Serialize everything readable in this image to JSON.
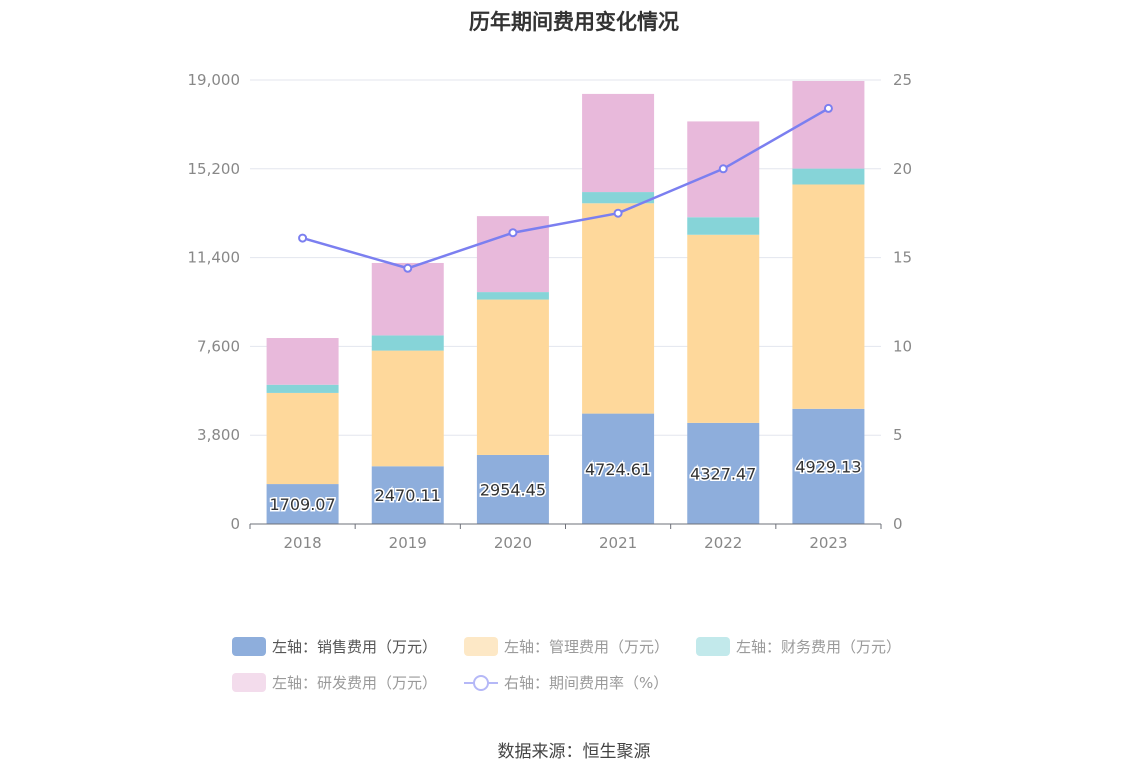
{
  "title": "历年期间费用变化情况",
  "source": "数据来源：恒生聚源",
  "chart_data": {
    "type": "bar",
    "stacked": true,
    "categories": [
      "2018",
      "2019",
      "2020",
      "2021",
      "2022",
      "2023"
    ],
    "series": [
      {
        "name": "左轴：销售费用（万元）",
        "axis": "left",
        "color": "#8eaedc",
        "values": [
          1709.07,
          2470.11,
          2954.45,
          4724.61,
          4327.47,
          4929.13
        ],
        "labels_shown": true
      },
      {
        "name": "左轴：管理费用（万元）",
        "axis": "left",
        "color": "#fed89b",
        "values": [
          3900,
          4950,
          6650,
          9000,
          8050,
          9600
        ]
      },
      {
        "name": "左轴：财务费用（万元）",
        "axis": "left",
        "color": "#86d4d8",
        "values": [
          350,
          650,
          320,
          480,
          750,
          680
        ]
      },
      {
        "name": "左轴：研发费用（万元）",
        "axis": "left",
        "color": "#e8b9db",
        "values": [
          2000,
          3100,
          3250,
          4200,
          4100,
          3750
        ]
      },
      {
        "name": "右轴：期间费用率（%）",
        "axis": "right",
        "type": "line",
        "color": "#7b7ff0",
        "values": [
          16.1,
          14.4,
          16.4,
          17.5,
          20.0,
          23.4
        ]
      }
    ],
    "left_axis": {
      "min": 0,
      "max": 19000,
      "ticks": [
        "0",
        "3,800",
        "7,600",
        "11,400",
        "15,200",
        "19,000"
      ]
    },
    "right_axis": {
      "min": 0,
      "max": 25,
      "ticks": [
        "0",
        "5",
        "10",
        "15",
        "20",
        "25"
      ]
    },
    "grid": true,
    "legend_position": "bottom"
  }
}
